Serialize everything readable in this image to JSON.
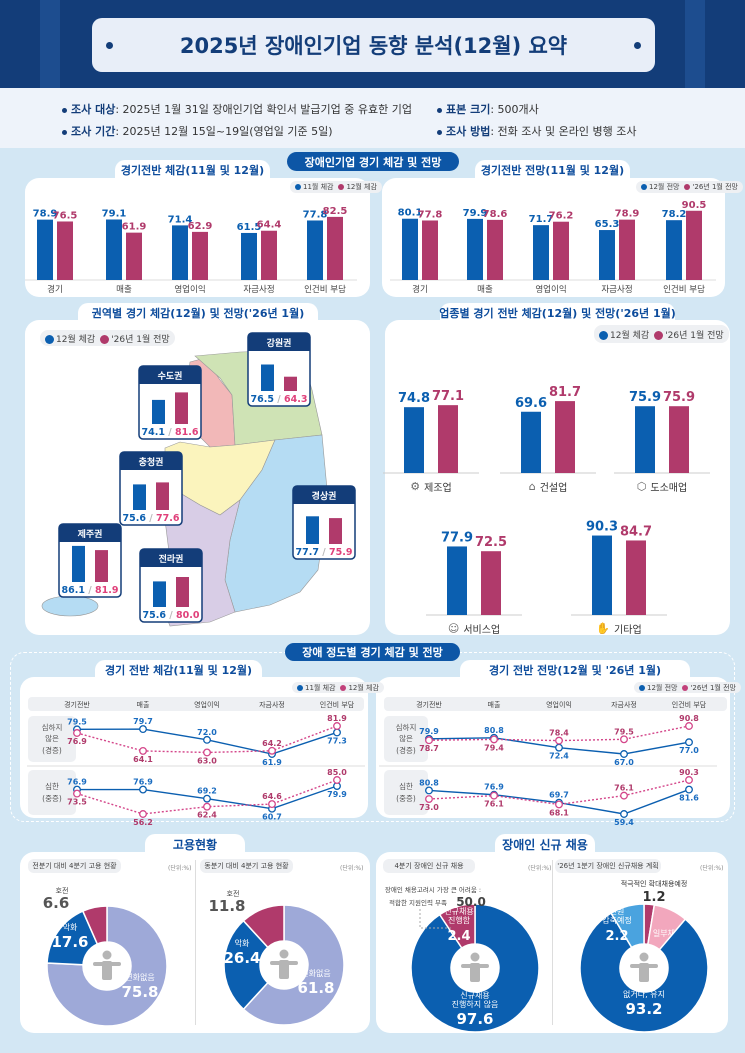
{
  "header": {
    "title": "2025년 장애인기업 동향 분석(12월) 요약"
  },
  "info": [
    {
      "label": "조사 대상",
      "value": ": 2025년 1월 31일 장애인기업 확인서 발급기업 중 유효한 기업"
    },
    {
      "label": "표본 크기",
      "value": ": 500개사"
    },
    {
      "label": "조사 기간",
      "value": ": 2025년 12월 15일~19일(영업일 기준 5일)"
    },
    {
      "label": "조사 방법",
      "value": ":  전화 조사 및 온라인 병행 조사"
    }
  ],
  "sections": {
    "s1": "장애인기업 경기 체감 및 전망",
    "s3": "장애 정도별 경기 체감 및 전망",
    "s4a": "고용현황",
    "s4b": "장애인 신규 채용"
  },
  "colors": {
    "blue": "#0b5fb0",
    "magenta": "#b03a6b",
    "lavender": "#9ea9d8",
    "pink": "#f2a7bd",
    "lightblue": "#4aa3df",
    "navy": "#133d79",
    "gray_text": "#555555"
  },
  "chart_data": [
    {
      "type": "bar",
      "title": "경기전반 체감(11월 및 12월)",
      "categories": [
        "경기",
        "매출",
        "영업이익",
        "자금사정",
        "인건비 부담"
      ],
      "series": [
        {
          "name": "11월 체감",
          "values": [
            78.9,
            79.1,
            71.4,
            61.5,
            77.8
          ]
        },
        {
          "name": "12월 체감",
          "values": [
            76.5,
            61.9,
            62.9,
            64.4,
            82.5
          ]
        }
      ],
      "legend": "top-right"
    },
    {
      "type": "bar",
      "title": "경기전반 전망(11월 및 12월)",
      "categories": [
        "경기",
        "매출",
        "영업이익",
        "자금사정",
        "인건비 부담"
      ],
      "series": [
        {
          "name": "12월 전망",
          "values": [
            80.1,
            79.9,
            71.7,
            65.3,
            78.2
          ]
        },
        {
          "name": "'26년 1월 전망",
          "values": [
            77.8,
            78.6,
            76.2,
            78.9,
            90.5
          ]
        }
      ],
      "legend": "top-right"
    },
    {
      "type": "bar",
      "title": "권역별 경기 체감(12월) 및 전망('26년 1월)",
      "categories": [
        "강원권",
        "수도권",
        "충청권",
        "경상권",
        "제주권",
        "전라권"
      ],
      "series": [
        {
          "name": "12월 체감",
          "values": [
            76.5,
            74.1,
            75.6,
            77.7,
            86.1,
            75.6
          ]
        },
        {
          "name": "'26년 1월 전망",
          "values": [
            64.3,
            81.6,
            77.6,
            75.9,
            81.9,
            80.0
          ]
        }
      ],
      "legend": "top-left"
    },
    {
      "type": "bar",
      "title": "업종별 경기 전반 체감(12월) 및 전망('26년 1월)",
      "categories": [
        "제조업",
        "건설업",
        "도소매업",
        "서비스업",
        "기타업"
      ],
      "category_icons": [
        "gear-icon",
        "house-icon",
        "box-icon",
        "smiley-icon",
        "hand-icon"
      ],
      "series": [
        {
          "name": "12월 체감",
          "values": [
            74.8,
            69.6,
            75.9,
            77.9,
            90.3
          ]
        },
        {
          "name": "'26년 1월 전망",
          "values": [
            77.1,
            81.7,
            75.9,
            72.5,
            84.7
          ]
        }
      ],
      "legend": "top-right"
    },
    {
      "type": "line",
      "title": "경기 전반 체감(11월 및 12월)",
      "categories": [
        "경기전반",
        "매출",
        "영업이익",
        "자금사정",
        "인건비 부담"
      ],
      "legend_names": [
        "11월 체감",
        "12월 체감"
      ],
      "rows": [
        {
          "label": "심하지\n않은\n(경증)",
          "series": [
            {
              "name": "11월 체감",
              "values": [
                79.5,
                79.7,
                72.0,
                61.9,
                77.3
              ]
            },
            {
              "name": "12월 체감",
              "values": [
                76.9,
                64.1,
                63.0,
                64.2,
                81.9
              ]
            }
          ]
        },
        {
          "label": "심한\n(중증)",
          "series": [
            {
              "name": "11월 체감",
              "values": [
                76.9,
                76.9,
                69.2,
                60.7,
                79.9
              ]
            },
            {
              "name": "12월 체감",
              "values": [
                73.5,
                56.2,
                62.4,
                64.6,
                85.0
              ]
            }
          ]
        }
      ]
    },
    {
      "type": "line",
      "title": "경기 전반 전망(12월 및 '26년 1월)",
      "categories": [
        "경기전반",
        "매출",
        "영업이익",
        "자금사정",
        "인건비 부담"
      ],
      "legend_names": [
        "12월 전망",
        "'26년 1월 전망"
      ],
      "rows": [
        {
          "label": "심하지\n않은\n(경증)",
          "series": [
            {
              "name": "12월 전망",
              "values": [
                79.9,
                80.8,
                72.4,
                67.0,
                77.0
              ]
            },
            {
              "name": "'26년 1월 전망",
              "values": [
                78.7,
                79.4,
                78.4,
                79.5,
                90.8
              ]
            }
          ]
        },
        {
          "label": "심한\n(중증)",
          "series": [
            {
              "name": "12월 전망",
              "values": [
                80.8,
                76.9,
                69.7,
                59.4,
                81.6
              ]
            },
            {
              "name": "'26년 1월 전망",
              "values": [
                73.0,
                76.1,
                68.1,
                76.1,
                90.3
              ]
            }
          ]
        }
      ]
    },
    {
      "type": "pie",
      "title": "전분기 대비 4분기 고용 현황",
      "unit": "(단위:%)",
      "slices": [
        {
          "label": "변화없음",
          "value": 75.8,
          "color": "#9ea9d8"
        },
        {
          "label": "악화",
          "value": 17.6,
          "color": "#0b5fb0"
        },
        {
          "label": "호전",
          "value": 6.6,
          "color": "#b03a6b"
        }
      ]
    },
    {
      "type": "pie",
      "title": "동분기 대비 4분기 고용 현황",
      "unit": "(단위:%)",
      "slices": [
        {
          "label": "변화없음",
          "value": 61.8,
          "color": "#9ea9d8"
        },
        {
          "label": "악화",
          "value": 26.4,
          "color": "#0b5fb0"
        },
        {
          "label": "호전",
          "value": 11.8,
          "color": "#b03a6b"
        }
      ]
    },
    {
      "type": "pie",
      "title": "4분기 장애인 신규 채용",
      "unit": "(단위:%)",
      "slices": [
        {
          "label": "신규채용\n진행하지 않음",
          "value": 97.6,
          "color": "#0b5fb0"
        },
        {
          "label": "신규채용\n진행함",
          "value": 2.4,
          "color": "#b03a6b"
        }
      ],
      "annotation": {
        "line1": "장애인 채용고려시 가장 큰 어려움 :",
        "line2": "적합한 지원인력 부족",
        "value": "50.0"
      }
    },
    {
      "type": "pie",
      "title": "'26년 1분기 장애인 신규채용 계획",
      "unit": "(단위:%)",
      "slices": [
        {
          "label": "적극적인 확대채용예정",
          "value": 1.2,
          "color": "#b03a6b"
        },
        {
          "label": "일부채용예정",
          "value": 3.4,
          "color": "#f2a7bd"
        },
        {
          "label": "채용이\n없거나, 유지",
          "value": 93.2,
          "color": "#0b5fb0"
        },
        {
          "label": "인원\n감축예정",
          "value": 2.2,
          "color": "#4aa3df"
        }
      ]
    }
  ]
}
